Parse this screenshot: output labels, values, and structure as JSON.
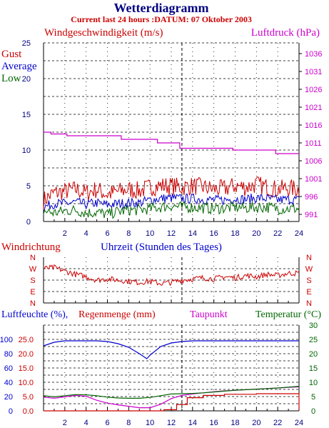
{
  "header": {
    "title": "Wetterdiagramm",
    "subtitle": "Current last 24 hours :DATUM: 07 Oktober 2003"
  },
  "colors": {
    "red": "#cc0000",
    "blue": "#0000cc",
    "green": "#006600",
    "magenta": "#cc00cc",
    "navy": "#000080",
    "grid": "#000000"
  },
  "chart_data": [
    {
      "type": "line",
      "id": "wind_pressure",
      "title_left": "Windgeschwindigkeit (m/s)",
      "title_right": "Luftdruck (hPa)",
      "legend": [
        "Gust",
        "Average",
        "Low"
      ],
      "x_ticks": [
        "2",
        "4",
        "6",
        "8",
        "10",
        "12",
        "14",
        "16",
        "18",
        "20",
        "22",
        "24"
      ],
      "xlim": [
        0,
        24
      ],
      "ylim_left": [
        0,
        25
      ],
      "ylim_right": [
        989,
        1039
      ],
      "y_ticks_left": [
        "0",
        "5",
        "10",
        "15",
        "20",
        "25"
      ],
      "y_ticks_right": [
        "991",
        "996",
        "1001",
        "1006",
        "1011",
        "1016",
        "1021",
        "1026",
        "1031",
        "1036"
      ],
      "series": [
        {
          "name": "Gust",
          "axis": "left",
          "color": "#cc0000",
          "x": [
            0,
            1,
            2,
            3,
            4,
            5,
            6,
            7,
            8,
            9,
            10,
            11,
            12,
            13,
            14,
            15,
            16,
            17,
            18,
            19,
            20,
            21,
            22,
            23,
            24
          ],
          "values": [
            3.0,
            4.0,
            4.2,
            4.5,
            4.0,
            4.5,
            3.8,
            4.2,
            4.5,
            4.3,
            4.8,
            5.0,
            5.0,
            4.8,
            5.0,
            4.8,
            4.5,
            4.6,
            5.0,
            4.8,
            5.2,
            4.8,
            4.5,
            4.7,
            4.5
          ]
        },
        {
          "name": "Average",
          "axis": "left",
          "color": "#0000cc",
          "x": [
            0,
            1,
            2,
            3,
            4,
            5,
            6,
            7,
            8,
            9,
            10,
            11,
            12,
            13,
            14,
            15,
            16,
            17,
            18,
            19,
            20,
            21,
            22,
            23,
            24
          ],
          "values": [
            2.0,
            2.5,
            2.5,
            2.7,
            2.4,
            2.6,
            2.3,
            2.5,
            2.6,
            2.6,
            3.0,
            3.2,
            3.3,
            3.2,
            3.2,
            3.1,
            3.0,
            3.0,
            3.2,
            3.1,
            3.3,
            3.2,
            3.0,
            3.1,
            3.0
          ]
        },
        {
          "name": "Low",
          "axis": "left",
          "color": "#006600",
          "x": [
            0,
            1,
            2,
            3,
            4,
            5,
            6,
            7,
            8,
            9,
            10,
            11,
            12,
            13,
            14,
            15,
            16,
            17,
            18,
            19,
            20,
            21,
            22,
            23,
            24
          ],
          "values": [
            1.5,
            1.2,
            1.5,
            1.6,
            1.2,
            1.3,
            1.0,
            1.4,
            1.6,
            1.6,
            1.8,
            2.0,
            2.2,
            2.0,
            2.0,
            1.9,
            1.8,
            1.9,
            2.0,
            1.9,
            2.0,
            2.0,
            1.8,
            1.8,
            1.8
          ]
        },
        {
          "name": "Luftdruck",
          "axis": "right",
          "color": "#cc00cc",
          "x": [
            0,
            0.7,
            0.7,
            2.2,
            2.2,
            7.3,
            7.3,
            10.7,
            10.7,
            12.8,
            12.8,
            17.8,
            17.8,
            21.8,
            21.8,
            24
          ],
          "values": [
            1014,
            1014,
            1013.5,
            1013.5,
            1013,
            1013,
            1012,
            1012,
            1011,
            1011,
            1009.5,
            1009.5,
            1009,
            1009,
            1008,
            1008
          ]
        }
      ]
    },
    {
      "type": "line",
      "id": "wind_direction",
      "title_left": "Windrichtung",
      "title_center": "Uhrzeit (Stunden des Tages)",
      "y_labels": [
        "N",
        "W",
        "S",
        "E",
        "N"
      ],
      "xlim": [
        0,
        24
      ],
      "series": [
        {
          "name": "Windrichtung",
          "color": "#cc0000",
          "x": [
            0,
            1,
            2,
            3,
            4,
            5,
            6,
            7,
            8,
            9,
            10,
            11,
            12,
            13,
            14,
            15,
            16,
            17,
            18,
            19,
            20,
            21,
            22,
            23,
            24
          ],
          "values": [
            3.0,
            3.1,
            2.8,
            2.5,
            2.3,
            2.0,
            2.1,
            2.0,
            1.9,
            1.8,
            1.9,
            1.7,
            1.8,
            2.0,
            2.1,
            2.2,
            2.1,
            2.3,
            2.2,
            2.4,
            2.3,
            2.5,
            2.4,
            2.6,
            2.6
          ]
        }
      ]
    },
    {
      "type": "line",
      "id": "humidity_rain_temp",
      "title_left_1": "Luftfeuchte (%),",
      "title_left_2": "Regenmenge (mm)",
      "title_mid": "Taupunkt",
      "title_right": "Temperatur (°C)",
      "x_ticks": [
        "2",
        "4",
        "6",
        "8",
        "10",
        "12",
        "14",
        "16",
        "18",
        "20",
        "22",
        "24"
      ],
      "xlim": [
        0,
        24
      ],
      "y_ticks_left_pct": [
        "0",
        "20",
        "40",
        "60",
        "80",
        "100"
      ],
      "y_ticks_left_mm": [
        "0.0",
        "5.0",
        "10.0",
        "15.0",
        "20.0",
        "25.0"
      ],
      "y_ticks_right": [
        "0",
        "5",
        "10",
        "15",
        "20",
        "25",
        "30"
      ],
      "ylim_right": [
        0,
        30
      ],
      "series": [
        {
          "name": "Luftfeuchte (%)",
          "axis": "pct",
          "color": "#0000cc",
          "x": [
            0,
            1,
            2,
            3,
            4,
            5,
            6,
            7,
            8,
            9,
            9.7,
            10,
            11,
            12,
            13,
            14,
            15,
            16,
            17,
            18,
            19,
            20,
            21,
            22,
            23,
            24
          ],
          "values": [
            91,
            96,
            98,
            98,
            98,
            98,
            97,
            94,
            89,
            80,
            73,
            78,
            90,
            95,
            97,
            98,
            98,
            98,
            98,
            98,
            98,
            98,
            98,
            98,
            98,
            98
          ]
        },
        {
          "name": "Regenmenge (mm)",
          "axis": "mm",
          "color": "#cc0000",
          "x": [
            0,
            11.3,
            11.3,
            12.5,
            12.5,
            13.5,
            13.5,
            15,
            15,
            17,
            17,
            20,
            20,
            24,
            24
          ],
          "values": [
            0,
            0,
            0.4,
            0.4,
            2.2,
            2.2,
            4.6,
            4.6,
            5.4,
            5.4,
            5.8,
            5.8,
            6.0,
            6.0,
            0.4
          ]
        },
        {
          "name": "Taupunkt",
          "axis": "right",
          "color": "#cc00cc",
          "x": [
            0,
            1,
            2,
            3,
            4,
            5,
            6,
            7,
            8,
            9,
            10,
            11,
            12,
            13,
            14,
            15,
            16,
            17,
            18,
            19,
            20,
            21,
            22,
            23,
            24
          ],
          "values": [
            4.8,
            4.4,
            4.9,
            5.4,
            5.1,
            3.7,
            2.7,
            2.1,
            1.6,
            1.1,
            1.1,
            2.3,
            4.3,
            5.4,
            5.9,
            6.3,
            6.7,
            7.0,
            7.2,
            7.4,
            7.6,
            7.8,
            8.0,
            8.2,
            8.4
          ]
        },
        {
          "name": "Temperatur",
          "axis": "right",
          "color": "#006600",
          "x": [
            0,
            1,
            2,
            3,
            4,
            5,
            6,
            7,
            8,
            9,
            10,
            11,
            12,
            13,
            14,
            15,
            16,
            17,
            18,
            19,
            20,
            21,
            22,
            23,
            24
          ],
          "values": [
            5.3,
            4.9,
            5.3,
            5.7,
            5.6,
            5.3,
            4.8,
            4.5,
            4.4,
            4.4,
            4.7,
            5.3,
            5.9,
            6.0,
            6.1,
            6.3,
            6.6,
            6.9,
            7.2,
            7.4,
            7.6,
            7.8,
            8.0,
            8.3,
            8.6
          ]
        }
      ]
    }
  ]
}
